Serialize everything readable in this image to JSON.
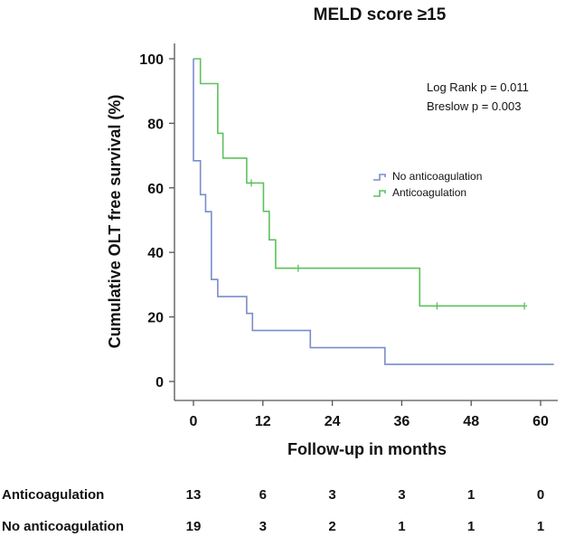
{
  "chart_data": {
    "type": "line",
    "subtype": "kaplan-meier",
    "title": "MELD score ≥15",
    "xlabel": "Follow-up in months",
    "ylabel": "Cumulative OLT free survival (%)",
    "xlim": [
      -3,
      63
    ],
    "ylim": [
      -5,
      105
    ],
    "xticks": [
      0,
      12,
      24,
      36,
      48,
      60
    ],
    "yticks": [
      0,
      20,
      40,
      60,
      80,
      100
    ],
    "grid": false,
    "legend_position": "center-right",
    "annotations": [
      "Log Rank p = 0.011",
      "Breslow p = 0.003"
    ],
    "series": [
      {
        "name": "No anticoagulation",
        "color": "#7b8ccc",
        "steps": [
          [
            0,
            100
          ],
          [
            0,
            68.4
          ],
          [
            1.2,
            57.9
          ],
          [
            2.1,
            52.6
          ],
          [
            3.1,
            31.6
          ],
          [
            4.2,
            26.3
          ],
          [
            9.2,
            21.1
          ],
          [
            10.2,
            15.8
          ],
          [
            20.2,
            10.5
          ],
          [
            33.1,
            5.3
          ]
        ],
        "end": 62.3,
        "censored": []
      },
      {
        "name": "Anticoagulation",
        "color": "#5cc25c",
        "steps": [
          [
            0,
            100
          ],
          [
            1.2,
            92.3
          ],
          [
            4.2,
            76.9
          ],
          [
            5.1,
            69.2
          ],
          [
            9.2,
            61.5
          ],
          [
            12.1,
            52.7
          ],
          [
            13.1,
            43.9
          ],
          [
            14.2,
            35.1
          ],
          [
            39.1,
            23.4
          ]
        ],
        "end": 57.2,
        "censored": [
          [
            10,
            61.5
          ],
          [
            18.1,
            35.1
          ],
          [
            42.1,
            23.4
          ],
          [
            57.2,
            23.4
          ]
        ]
      }
    ],
    "risk_table": {
      "times": [
        0,
        12,
        24,
        36,
        48,
        60
      ],
      "rows": [
        {
          "label": "Anticoagulation",
          "values": [
            13,
            6,
            3,
            3,
            1,
            0
          ]
        },
        {
          "label": "No anticoagulation",
          "values": [
            19,
            3,
            2,
            1,
            1,
            1
          ]
        }
      ]
    }
  }
}
